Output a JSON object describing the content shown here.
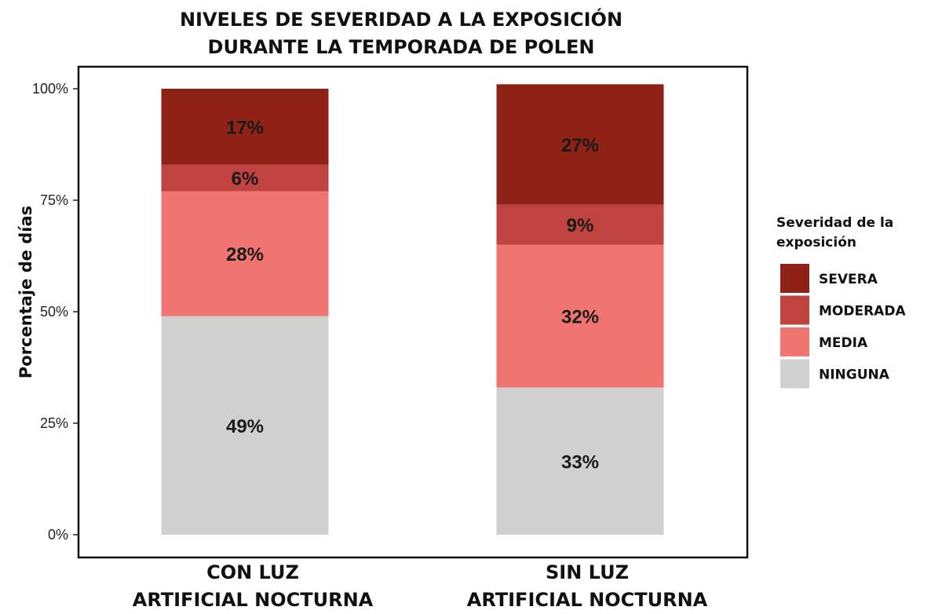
{
  "chart_data": {
    "type": "bar",
    "stacked": true,
    "title_lines": [
      "NIVELES DE SEVERIDAD A LA EXPOSICIÓN",
      "DURANTE LA TEMPORADA DE POLEN"
    ],
    "xlabel": "",
    "ylabel": "Porcentaje de días",
    "ylim": [
      0,
      100
    ],
    "y_ticks": [
      0,
      25,
      50,
      75,
      100
    ],
    "y_tick_labels": [
      "0%",
      "25%",
      "50%",
      "75%",
      "100%"
    ],
    "categories": [
      [
        "CON LUZ",
        "ARTIFICIAL NOCTURNA"
      ],
      [
        "SIN LUZ",
        "ARTIFICIAL NOCTURNA"
      ]
    ],
    "series": [
      {
        "name": "NINGUNA",
        "color": "#d0d0d0",
        "values": [
          49,
          33
        ],
        "labels": [
          "49%",
          "33%"
        ]
      },
      {
        "name": "MEDIA",
        "color": "#f07470",
        "values": [
          28,
          32
        ],
        "labels": [
          "28%",
          "32%"
        ]
      },
      {
        "name": "MODERADA",
        "color": "#c0433f",
        "values": [
          6,
          9
        ],
        "labels": [
          "6%",
          "9%"
        ]
      },
      {
        "name": "SEVERA",
        "color": "#8e2216",
        "values": [
          17,
          27
        ],
        "labels": [
          "17%",
          "27%"
        ]
      }
    ],
    "legend": {
      "title_lines": [
        "Severidad de la",
        "exposición"
      ],
      "placement": "right",
      "order": [
        "SEVERA",
        "MODERADA",
        "MEDIA",
        "NINGUNA"
      ]
    },
    "grid": false
  }
}
